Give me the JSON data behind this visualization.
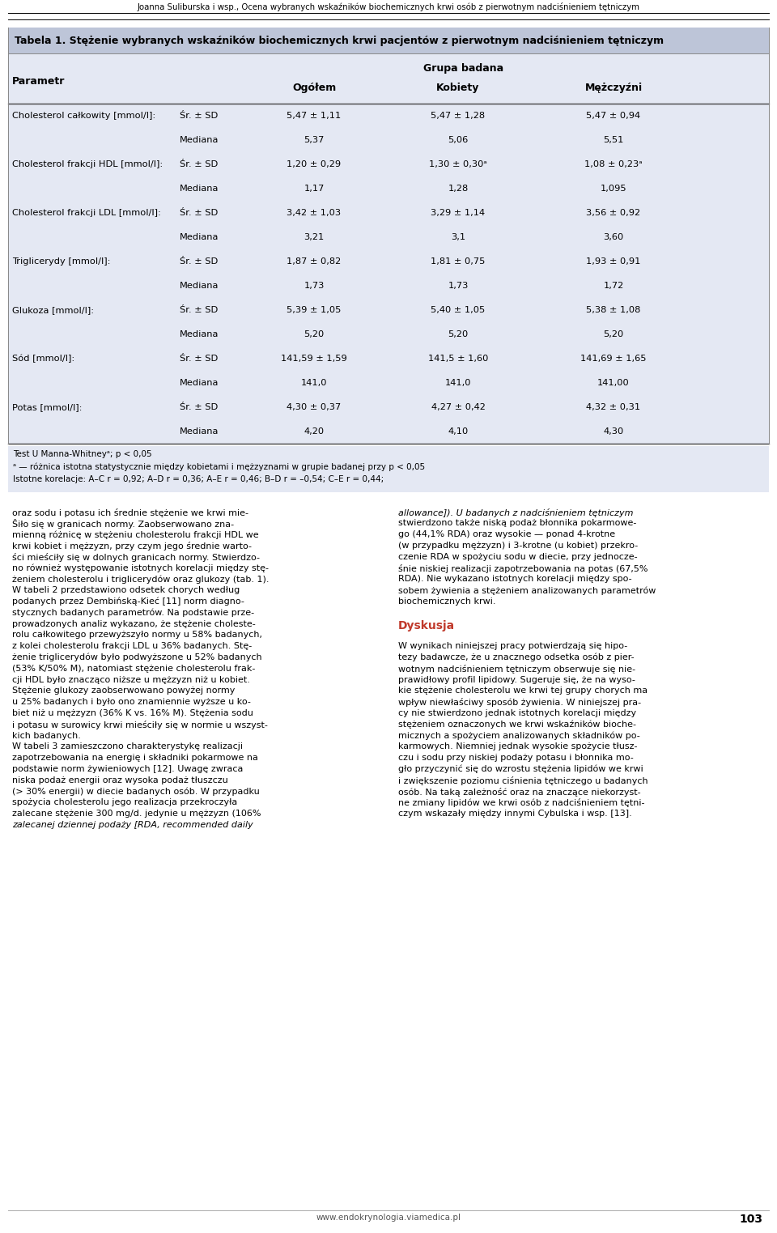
{
  "header_title": "Joanna Suliburska i wsp., Ocena wybranych wskaźników biochemicznych krwi osób z pierwotnym nadciśnieniem tętniczym",
  "table_title": "Tabela 1. Stężenie wybranych wskaźników biochemicznych krwi pacjentów z pierwotnym nadciśnieniem tętniczym",
  "group_header": "Grupa badana",
  "col_sub_headers": [
    "Ogółem",
    "Kobiety",
    "Mężczyźni"
  ],
  "rows": [
    {
      "param": "Cholesterol całkowity [mmol/l]:",
      "stat": "Śr. ± SD",
      "ogolем": "5,47 ± 1,11",
      "kobiety": "5,47 ± 1,28",
      "mezczyzni": "5,47 ± 0,94"
    },
    {
      "param": "",
      "stat": "Mediana",
      "ogolем": "5,37",
      "kobiety": "5,06",
      "mezczyzni": "5,51"
    },
    {
      "param": "Cholesterol frakcji HDL [mmol/l]:",
      "stat": "Śr. ± SD",
      "ogolем": "1,20 ± 0,29",
      "kobiety": "1,30 ± 0,30ᵃ",
      "mezczyzni": "1,08 ± 0,23ᵃ"
    },
    {
      "param": "",
      "stat": "Mediana",
      "ogolем": "1,17",
      "kobiety": "1,28",
      "mezczyzni": "1,095"
    },
    {
      "param": "Cholesterol frakcji LDL [mmol/l]:",
      "stat": "Śr. ± SD",
      "ogolем": "3,42 ± 1,03",
      "kobiety": "3,29 ± 1,14",
      "mezczyzni": "3,56 ± 0,92"
    },
    {
      "param": "",
      "stat": "Mediana",
      "ogolем": "3,21",
      "kobiety": "3,1",
      "mezczyzni": "3,60"
    },
    {
      "param": "Triglicerydy [mmol/l]:",
      "stat": "Śr. ± SD",
      "ogolем": "1,87 ± 0,82",
      "kobiety": "1,81 ± 0,75",
      "mezczyzni": "1,93 ± 0,91"
    },
    {
      "param": "",
      "stat": "Mediana",
      "ogolем": "1,73",
      "kobiety": "1,73",
      "mezczyzni": "1,72"
    },
    {
      "param": "Glukoza [mmol/l]:",
      "stat": "Śr. ± SD",
      "ogolем": "5,39 ± 1,05",
      "kobiety": "5,40 ± 1,05",
      "mezczyzni": "5,38 ± 1,08"
    },
    {
      "param": "",
      "stat": "Mediana",
      "ogolем": "5,20",
      "kobiety": "5,20",
      "mezczyzni": "5,20"
    },
    {
      "param": "Sód [mmol/l]:",
      "stat": "Śr. ± SD",
      "ogolем": "141,59 ± 1,59",
      "kobiety": "141,5 ± 1,60",
      "mezczyzni": "141,69 ± 1,65"
    },
    {
      "param": "",
      "stat": "Mediana",
      "ogolем": "141,0",
      "kobiety": "141,0",
      "mezczyzni": "141,00"
    },
    {
      "param": "Potas [mmol/l]:",
      "stat": "Śr. ± SD",
      "ogolем": "4,30 ± 0,37",
      "kobiety": "4,27 ± 0,42",
      "mezczyzni": "4,32 ± 0,31"
    },
    {
      "param": "",
      "stat": "Mediana",
      "ogolем": "4,20",
      "kobiety": "4,10",
      "mezczyzni": "4,30"
    }
  ],
  "footnotes": [
    "Test U Manna-Whitneyᵃ; p < 0,05",
    "ᵃ — różnica istotna statystycznie między kobietami i mężzyznami w grupie badanej przy p < 0,05",
    "Istotne korelacje: A–C r = 0,92; A–D r = 0,36; A–E r = 0,46; B–D r = –0,54; C–E r = 0,44;"
  ],
  "body_text_left": [
    "oraz sodu i potasu ich średnie stężenie we krwi mie-",
    "Ŝiło się w granicach normy. Zaobserwowano zna-",
    "mienną różnicę w stężeniu cholesterolu frakcji HDL we",
    "krwi kobiet i mężzyzn, przy czym jego średnie warto-",
    "ści mieściły się w dolnych granicach normy. Stwierdzo-",
    "no również występowanie istotnych korelacji między stę-",
    "żeniem cholesterolu i triglicerydów oraz glukozy (tab. 1).",
    "W tabeli 2 przedstawiono odsetek chorych według",
    "podanych przez Dembińską-Kieć [11] norm diagno-",
    "stycznych badanych parametrów. Na podstawie prze-",
    "prowadzonych analiz wykazano, że stężenie choleste-",
    "rolu całkowitego przewyższyło normy u 58% badanych,",
    "z kolei cholesterolu frakcji LDL u 36% badanych. Stę-",
    "żenie triglicerydów było podwyższone u 52% badanych",
    "(53% K/50% M), natomiast stężenie cholesterolu frak-",
    "cji HDL było znacząco niższe u mężzyzn niż u kobiet.",
    "Stężenie glukozy zaobserwowano powyżej normy",
    "u 25% badanych i było ono znamiennie wyższe u ko-",
    "biet niż u mężzyzn (36% K vs. 16% M). Stężenia sodu",
    "i potasu w surowicy krwi mieściły się w normie u wszyst-",
    "kich badanych.",
    "W tabeli 3 zamieszczono charakterystykę realizacji",
    "zapotrzebowania na energię i składniki pokarmowe na",
    "podstawie norm żywieniowych [12]. Uwagę zwraca",
    "niska podaż energii oraz wysoka podaż tłuszczu",
    "(> 30% energii) w diecie badanych osób. W przypadku",
    "spożycia cholesterolu jego realizacja przekroczyła",
    "zalecane stężenie 300 mg/d. jedynie u mężzyzn (106%",
    "zalecanej dziennej podaży [RDA, recommended daily"
  ],
  "body_text_right_pre_dyskusja": [
    "allowance]). U badanych z nadciśnieniem tętniczym",
    "stwierdzono także niską podaż błonnika pokarmowe-",
    "go (44,1% RDA) oraz wysokie — ponad 4-krotne",
    "(w przypadku mężzyzn) i 3-krotne (u kobiet) przekro-",
    "czenie RDA w spożyciu sodu w diecie, przy jednocze-",
    "śnie niskiej realizacji zapotrzebowania na potas (67,5%",
    "RDA). Nie wykazano istotnych korelacji między spo-",
    "sobem żywienia a stężeniem analizowanych parametrów",
    "biochemicznych krwi."
  ],
  "dyskusja_label": "Dyskusja",
  "body_text_right_post_dyskusja": [
    "W wynikach niniejszej pracy potwierdzają się hipo-",
    "tezy badawcze, że u znacznego odsetka osób z pier-",
    "wotnym nadciśnieniem tętniczym obserwuje się nie-",
    "prawidłowy profil lipidowy. Sugeruje się, że na wyso-",
    "kie stężenie cholesterolu we krwi tej grupy chorych ma",
    "wpływ niewłaściwy sposób żywienia. W niniejszej pra-",
    "cy nie stwierdzono jednak istotnych korelacji między",
    "stężeniem oznaczonych we krwi wskaźników bioche-",
    "micznych a spożyciem analizowanych składników po-",
    "karmowych. Niemniej jednak wysokie spożycie tłusz-",
    "czu i sodu przy niskiej podaży potasu i błonnika mo-",
    "gło przyczynić się do wzrostu stężenia lipidów we krwi",
    "i zwiększenie poziomu ciśnienia tętniczego u badanych",
    "osób. Na taką zależność oraz na znaczące niekorzyst-",
    "ne zmiany lipidów we krwi osób z nadciśnieniem tętni-",
    "czym wskazały między innymi Cybulska i wsp. [13]."
  ],
  "footer_text": "www.endokrynologia.viamedica.pl",
  "page_number": "103",
  "table_bg_color": "#bdc5d8",
  "table_row_bg": "#e4e8f3",
  "dyskusja_color": "#c0392b"
}
